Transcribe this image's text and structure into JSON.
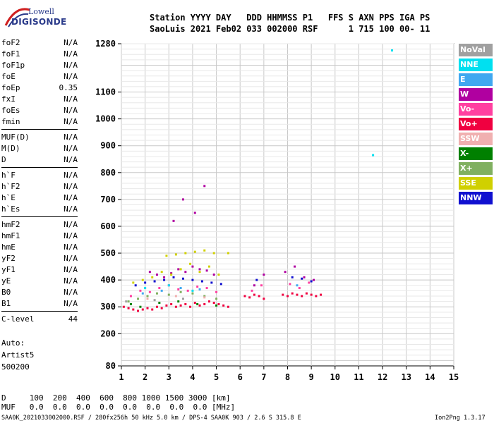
{
  "logo": {
    "line1": "Lowell",
    "line2": "DIGISONDE"
  },
  "header": {
    "labels": "Station YYYY DAY   DDD HHMMSS P1   FFS S AXN PPS IGA PS",
    "values": "SaoLuis 2021 Feb02 033 002000 RSF      1 715 100 00- 11"
  },
  "params": [
    {
      "name": "foF2",
      "value": "N/A"
    },
    {
      "name": "foF1",
      "value": "N/A"
    },
    {
      "name": "foF1p",
      "value": "N/A"
    },
    {
      "name": "foE",
      "value": "N/A"
    },
    {
      "name": "foEp",
      "value": "0.35"
    },
    {
      "name": "fxI",
      "value": "N/A"
    },
    {
      "name": "foEs",
      "value": "N/A"
    },
    {
      "name": "fmin",
      "value": "N/A"
    },
    {
      "name": "MUF(D)",
      "value": "N/A"
    },
    {
      "name": "M(D)",
      "value": "N/A"
    },
    {
      "name": "D",
      "value": "N/A"
    },
    {
      "name": "h`F",
      "value": "N/A"
    },
    {
      "name": "h`F2",
      "value": "N/A"
    },
    {
      "name": "h`E",
      "value": "N/A"
    },
    {
      "name": "h`Es",
      "value": "N/A"
    },
    {
      "name": "hmF2",
      "value": "N/A"
    },
    {
      "name": "hmF1",
      "value": "N/A"
    },
    {
      "name": "hmE",
      "value": "N/A"
    },
    {
      "name": "yF2",
      "value": "N/A"
    },
    {
      "name": "yF1",
      "value": "N/A"
    },
    {
      "name": "yE",
      "value": "N/A"
    },
    {
      "name": "B0",
      "value": "N/A"
    },
    {
      "name": "B1",
      "value": "N/A"
    },
    {
      "name": "C-level",
      "value": "44"
    }
  ],
  "auto": {
    "line1": "Auto:",
    "line2": "Artist5",
    "line3": "500200"
  },
  "legend": [
    {
      "label": "NoVal",
      "color": "#a0a0a0"
    },
    {
      "label": "NNE",
      "color": "#00e0f0"
    },
    {
      "label": "E",
      "color": "#40a8f0"
    },
    {
      "label": "W",
      "color": "#b000a0"
    },
    {
      "label": "Vo-",
      "color": "#ff40a0"
    },
    {
      "label": "Vo+",
      "color": "#f00040"
    },
    {
      "label": "SSW",
      "color": "#f0b0b0"
    },
    {
      "label": "X-",
      "color": "#008000"
    },
    {
      "label": "X+",
      "color": "#80b060"
    },
    {
      "label": "SSE",
      "color": "#d0d000"
    },
    {
      "label": "NNW",
      "color": "#1010d0"
    }
  ],
  "bottom": {
    "d_line": "D     100  200  400  600  800 1000 1500 3000 [km]",
    "muf_line": "MUF   0.0  0.0  0.0  0.0  0.0  0.0  0.0  0.0 [MHz]"
  },
  "footer": {
    "left": "SAA0K_2021033002000.RSF / 280fx256h 50 kHz 5.0 km / DPS-4 SAA0K 903 / 2.6 S 315.8 E",
    "right": "Ion2Png 1.3.17"
  },
  "chart_data": {
    "type": "scatter",
    "xlim": [
      1,
      15
    ],
    "ylim": [
      80,
      1280
    ],
    "x_ticks": [
      1,
      2,
      3,
      4,
      5,
      6,
      7,
      8,
      9,
      10,
      11,
      12,
      13,
      14,
      15
    ],
    "y_ticks": [
      80,
      200,
      300,
      400,
      500,
      600,
      700,
      800,
      900,
      1000,
      1100,
      1280
    ],
    "grid": true,
    "legend_position": "right",
    "series": [
      {
        "color": "#f00040",
        "x": [
          1.1,
          1.3,
          1.5,
          1.7,
          1.9,
          2.1,
          2.3,
          2.5,
          2.7,
          2.9,
          3.1,
          3.3,
          3.5,
          3.7,
          3.9,
          4.1,
          4.3,
          4.5,
          4.7,
          4.9,
          5.1,
          5.3,
          5.5,
          6.2,
          6.4,
          6.6,
          6.8,
          7.0,
          7.8,
          8.0,
          8.2,
          8.4,
          8.6,
          8.8,
          9.0,
          9.2,
          9.4
        ],
        "y": [
          300,
          295,
          290,
          285,
          290,
          295,
          290,
          300,
          295,
          305,
          310,
          300,
          305,
          310,
          300,
          315,
          305,
          310,
          320,
          315,
          310,
          305,
          300,
          340,
          335,
          345,
          340,
          330,
          345,
          340,
          350,
          345,
          340,
          350,
          345,
          340,
          345
        ]
      },
      {
        "color": "#ff40a0",
        "x": [
          1.4,
          1.8,
          2.2,
          2.6,
          3.0,
          3.4,
          3.8,
          4.2,
          4.6,
          5.0,
          6.5,
          6.9,
          8.1,
          8.5,
          8.9
        ],
        "y": [
          340,
          360,
          355,
          370,
          380,
          365,
          360,
          375,
          370,
          355,
          360,
          380,
          385,
          370,
          390
        ]
      },
      {
        "color": "#b000a0",
        "x": [
          2.2,
          2.5,
          2.8,
          3.1,
          3.4,
          3.7,
          4.0,
          4.3,
          4.6,
          4.9,
          3.2,
          3.6,
          4.1,
          4.5,
          6.6,
          7.0,
          7.9,
          8.3,
          8.7,
          9.1
        ],
        "y": [
          430,
          420,
          410,
          425,
          440,
          430,
          450,
          440,
          435,
          420,
          620,
          700,
          650,
          750,
          380,
          420,
          430,
          450,
          410,
          400
        ]
      },
      {
        "color": "#1010d0",
        "x": [
          1.6,
          2.0,
          2.4,
          2.8,
          3.2,
          3.6,
          4.0,
          4.4,
          4.8,
          5.2,
          6.7,
          8.2,
          8.6,
          9.0
        ],
        "y": [
          380,
          390,
          395,
          400,
          410,
          405,
          400,
          395,
          390,
          385,
          400,
          410,
          405,
          395
        ]
      },
      {
        "color": "#d0d000",
        "x": [
          1.5,
          1.9,
          2.3,
          2.7,
          3.1,
          3.5,
          3.9,
          4.3,
          4.7,
          5.1,
          5.5,
          2.9,
          3.3,
          3.7,
          4.1,
          4.5,
          4.9
        ],
        "y": [
          390,
          400,
          410,
          430,
          420,
          440,
          460,
          430,
          450,
          420,
          500,
          490,
          495,
          500,
          505,
          510,
          500
        ]
      },
      {
        "color": "#80b060",
        "x": [
          1.3,
          1.7,
          2.1,
          2.5,
          3.0,
          3.5,
          4.0,
          4.5,
          5.0
        ],
        "y": [
          320,
          330,
          340,
          350,
          345,
          355,
          350,
          340,
          330
        ]
      },
      {
        "color": "#008000",
        "x": [
          1.4,
          1.8,
          2.6,
          3.4,
          4.2,
          5.0
        ],
        "y": [
          310,
          300,
          315,
          320,
          310,
          305
        ]
      },
      {
        "color": "#00e0f0",
        "x": [
          2.0,
          3.0,
          4.0,
          11.6,
          12.4
        ],
        "y": [
          370,
          380,
          360,
          865,
          1255
        ]
      },
      {
        "color": "#40a8f0",
        "x": [
          1.9,
          2.7,
          3.5,
          4.3,
          8.4
        ],
        "y": [
          350,
          360,
          370,
          365,
          380
        ]
      },
      {
        "color": "#f0b0b0",
        "x": [
          2.1,
          3.3,
          4.5
        ],
        "y": [
          330,
          340,
          335
        ]
      },
      {
        "color": "#a0a0a0",
        "x": [
          1.2,
          2.4,
          3.6
        ],
        "y": [
          320,
          325,
          330
        ]
      }
    ]
  }
}
